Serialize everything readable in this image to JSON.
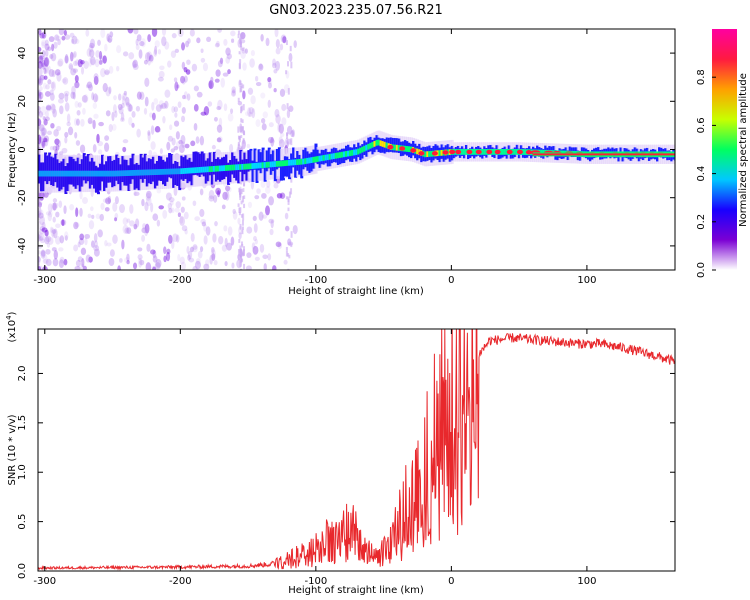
{
  "title": "GN03.2023.235.07.56.R21",
  "chart_data": [
    {
      "type": "heatmap",
      "name": "spectrogram",
      "xlabel": "Height of straight line (km)",
      "ylabel": "Frequency (Hz)",
      "xlim": [
        -305,
        165
      ],
      "ylim": [
        -50,
        50
      ],
      "xticks": [
        -300,
        -200,
        -100,
        0,
        100
      ],
      "yticks": [
        -40,
        -20,
        0,
        20,
        40
      ],
      "xtick_labels": [
        "-300",
        "-200",
        "-100",
        "0",
        "100"
      ],
      "ytick_labels": [
        "-40",
        "-20",
        "0",
        "20",
        "40"
      ],
      "colorbar": {
        "label": "Normalized spectral amplitude",
        "range": [
          0,
          1
        ],
        "ticks": [
          0.0,
          0.2,
          0.4,
          0.6,
          0.8
        ],
        "tick_labels": [
          "0.0",
          "0.2",
          "0.4",
          "0.6",
          "0.8"
        ],
        "colors": [
          "#ffffff",
          "#7b00d4",
          "#1800ff",
          "#00c8ff",
          "#00ff60",
          "#c8ff00",
          "#ffa000",
          "#ff1a40",
          "#ff00a0"
        ]
      },
      "ridge": [
        {
          "x": -300,
          "f": -10
        },
        {
          "x": -250,
          "f": -10
        },
        {
          "x": -200,
          "f": -9
        },
        {
          "x": -150,
          "f": -7
        },
        {
          "x": -110,
          "f": -5
        },
        {
          "x": -90,
          "f": -3
        },
        {
          "x": -70,
          "f": -1
        },
        {
          "x": -55,
          "f": 3
        },
        {
          "x": -45,
          "f": 1
        },
        {
          "x": -30,
          "f": 0
        },
        {
          "x": -20,
          "f": -2
        },
        {
          "x": 0,
          "f": -1
        },
        {
          "x": 50,
          "f": -1
        },
        {
          "x": 100,
          "f": -2
        },
        {
          "x": 165,
          "f": -2
        }
      ]
    },
    {
      "type": "line",
      "name": "snr",
      "xlabel": "Height of straight line (km)",
      "ylabel": "SNR (10 * v/v)",
      "yscale_label": "(x10",
      "yscale_exponent": "4",
      "xlim": [
        -305,
        165
      ],
      "ylim": [
        0,
        2.45
      ],
      "xticks": [
        -300,
        -200,
        -100,
        0,
        100
      ],
      "yticks": [
        0.0,
        0.5,
        1.0,
        1.5,
        2.0
      ],
      "xtick_labels": [
        "-300",
        "-200",
        "-100",
        "0",
        "100"
      ],
      "ytick_labels": [
        "0.0",
        "0.5",
        "1.0",
        "1.5",
        "2.0"
      ],
      "color": "#e8282c",
      "envelope": [
        {
          "x": -305,
          "y": 0.03
        },
        {
          "x": -200,
          "y": 0.04
        },
        {
          "x": -150,
          "y": 0.05
        },
        {
          "x": -125,
          "y": 0.08
        },
        {
          "x": -110,
          "y": 0.15
        },
        {
          "x": -95,
          "y": 0.25
        },
        {
          "x": -80,
          "y": 0.32
        },
        {
          "x": -72,
          "y": 0.38
        },
        {
          "x": -65,
          "y": 0.2
        },
        {
          "x": -55,
          "y": 0.12
        },
        {
          "x": -45,
          "y": 0.22
        },
        {
          "x": -35,
          "y": 0.5
        },
        {
          "x": -25,
          "y": 0.8
        },
        {
          "x": -15,
          "y": 1.05
        },
        {
          "x": -5,
          "y": 1.3
        },
        {
          "x": 5,
          "y": 1.7
        },
        {
          "x": 15,
          "y": 2.1
        },
        {
          "x": 28,
          "y": 2.33
        },
        {
          "x": 45,
          "y": 2.36
        },
        {
          "x": 70,
          "y": 2.33
        },
        {
          "x": 95,
          "y": 2.3
        },
        {
          "x": 110,
          "y": 2.3
        },
        {
          "x": 130,
          "y": 2.25
        },
        {
          "x": 150,
          "y": 2.18
        },
        {
          "x": 165,
          "y": 2.12
        }
      ]
    }
  ]
}
